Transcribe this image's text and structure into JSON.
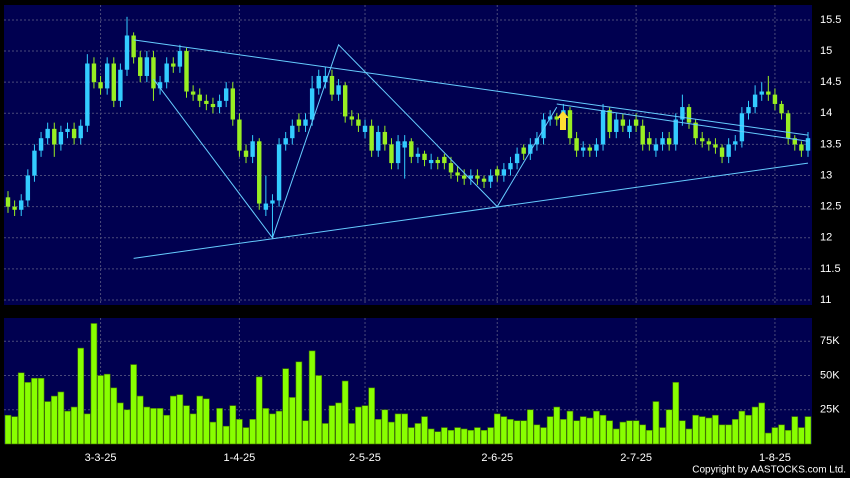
{
  "chart_data": [
    {
      "type": "candlestick",
      "categories": [
        null,
        null,
        null,
        null,
        null,
        null,
        null,
        null,
        null,
        null,
        null,
        null,
        null,
        null,
        "3-3-25",
        null,
        null,
        null,
        null,
        null,
        null,
        null,
        null,
        null,
        null,
        null,
        null,
        null,
        null,
        null,
        null,
        null,
        null,
        null,
        null,
        "1-4-25",
        null,
        null,
        null,
        null,
        null,
        null,
        null,
        null,
        null,
        null,
        null,
        null,
        null,
        null,
        null,
        null,
        null,
        null,
        "2-5-25",
        null,
        null,
        null,
        null,
        null,
        null,
        null,
        null,
        null,
        null,
        null,
        null,
        null,
        null,
        null,
        null,
        null,
        null,
        null,
        "2-6-25",
        null,
        null,
        null,
        null,
        null,
        null,
        null,
        null,
        null,
        null,
        null,
        null,
        null,
        null,
        null,
        null,
        null,
        null,
        null,
        null,
        "2-7-25",
        null,
        null,
        null,
        null,
        null,
        null,
        null,
        null,
        null,
        null,
        null,
        null,
        null,
        null,
        null,
        null,
        null,
        null,
        null,
        null,
        "1-8-25",
        null,
        null,
        null,
        null,
        null
      ],
      "open": [
        12.65,
        12.5,
        12.45,
        12.6,
        13.0,
        13.4,
        13.6,
        13.75,
        13.5,
        13.7,
        13.75,
        13.6,
        13.8,
        14.8,
        14.5,
        14.4,
        14.8,
        14.2,
        14.7,
        15.25,
        14.9,
        14.6,
        14.9,
        14.4,
        14.5,
        14.8,
        14.75,
        15.0,
        14.35,
        14.3,
        14.2,
        14.15,
        14.1,
        14.2,
        14.4,
        13.9,
        13.4,
        13.3,
        13.55,
        12.45,
        12.55,
        12.6,
        13.5,
        13.6,
        13.9,
        13.8,
        13.9,
        14.4,
        14.5,
        14.6,
        14.3,
        14.45,
        13.95,
        13.9,
        13.7,
        13.8,
        13.4,
        13.7,
        13.5,
        13.2,
        13.45,
        13.55,
        13.3,
        13.35,
        13.2,
        13.25,
        13.3,
        13.2,
        13.05,
        13.0,
        12.95,
        13.0,
        12.95,
        12.9,
        13.1,
        13.0,
        13.1,
        13.2,
        13.45,
        13.35,
        13.5,
        13.6,
        13.9,
        13.95,
        13.9,
        14.05,
        13.6,
        13.4,
        13.45,
        13.4,
        13.5,
        14.05,
        13.7,
        13.9,
        13.7,
        13.9,
        13.8,
        13.6,
        13.4,
        13.5,
        13.6,
        13.5,
        13.9,
        14.1,
        13.85,
        13.6,
        13.55,
        13.5,
        13.45,
        13.3,
        13.5,
        13.55,
        14.0,
        14.1,
        14.3,
        14.35,
        14.3,
        14.15,
        14.0,
        13.6,
        13.5,
        13.4
      ],
      "high": [
        12.75,
        12.6,
        12.7,
        13.1,
        13.5,
        13.7,
        13.85,
        13.85,
        13.8,
        13.85,
        13.85,
        13.9,
        14.95,
        14.9,
        14.6,
        14.9,
        14.9,
        14.8,
        15.55,
        15.3,
        15.0,
        15.0,
        15.0,
        14.6,
        14.9,
        14.9,
        15.1,
        15.05,
        14.45,
        14.4,
        14.3,
        14.25,
        14.3,
        14.5,
        14.5,
        14.0,
        13.5,
        13.65,
        13.6,
        13.0,
        12.7,
        13.6,
        13.7,
        13.9,
        14.0,
        14.0,
        14.6,
        14.7,
        14.75,
        14.7,
        14.55,
        14.5,
        14.05,
        14.0,
        13.9,
        13.9,
        13.8,
        13.8,
        13.6,
        13.65,
        13.65,
        13.6,
        13.45,
        13.4,
        13.35,
        13.3,
        13.35,
        13.3,
        13.15,
        13.1,
        13.1,
        13.1,
        13.0,
        13.1,
        13.15,
        13.2,
        13.3,
        13.45,
        13.5,
        13.6,
        13.7,
        14.0,
        14.05,
        14.0,
        14.15,
        14.1,
        13.7,
        13.55,
        13.5,
        13.6,
        14.15,
        14.1,
        14.0,
        14.0,
        13.9,
        14.0,
        13.9,
        13.7,
        13.6,
        13.7,
        13.7,
        14.0,
        14.3,
        14.15,
        13.9,
        13.7,
        13.6,
        13.6,
        13.5,
        13.6,
        13.65,
        14.1,
        14.2,
        14.45,
        14.5,
        14.6,
        14.4,
        14.2,
        14.05,
        13.65,
        13.55,
        13.7
      ],
      "low": [
        12.4,
        12.35,
        12.35,
        12.5,
        12.9,
        13.3,
        13.5,
        13.3,
        13.4,
        13.6,
        13.5,
        13.5,
        13.7,
        14.4,
        14.3,
        14.3,
        14.1,
        14.1,
        14.6,
        14.8,
        14.5,
        14.5,
        14.2,
        14.3,
        14.4,
        14.65,
        14.65,
        14.25,
        14.2,
        14.1,
        14.05,
        14.0,
        14.0,
        14.1,
        13.8,
        13.3,
        13.2,
        13.2,
        12.45,
        12.35,
        12.0,
        12.5,
        13.4,
        13.5,
        13.7,
        13.7,
        13.8,
        14.3,
        14.4,
        14.2,
        14.2,
        13.85,
        13.8,
        13.7,
        13.6,
        13.3,
        13.3,
        13.4,
        13.1,
        13.1,
        12.95,
        13.2,
        13.2,
        13.15,
        13.1,
        13.1,
        13.1,
        12.95,
        12.9,
        12.85,
        12.85,
        12.85,
        12.8,
        12.8,
        12.9,
        12.9,
        13.0,
        13.1,
        13.25,
        13.25,
        13.4,
        13.5,
        13.8,
        13.8,
        13.8,
        13.5,
        13.3,
        13.3,
        13.3,
        13.3,
        13.4,
        13.6,
        13.6,
        13.7,
        13.6,
        13.7,
        13.4,
        13.4,
        13.3,
        13.4,
        13.4,
        13.4,
        13.8,
        13.75,
        13.5,
        13.45,
        13.4,
        13.35,
        13.2,
        13.2,
        13.4,
        13.45,
        13.9,
        14.0,
        14.2,
        14.2,
        14.05,
        13.9,
        13.5,
        13.4,
        13.3,
        13.3
      ],
      "close": [
        12.5,
        12.45,
        12.6,
        13.0,
        13.4,
        13.6,
        13.75,
        13.5,
        13.7,
        13.75,
        13.6,
        13.8,
        14.8,
        14.5,
        14.4,
        14.8,
        14.2,
        14.7,
        15.25,
        14.9,
        14.6,
        14.9,
        14.4,
        14.5,
        14.8,
        14.75,
        15.0,
        14.35,
        14.3,
        14.2,
        14.15,
        14.1,
        14.2,
        14.4,
        13.9,
        13.4,
        13.3,
        13.55,
        12.55,
        12.55,
        12.6,
        13.5,
        13.6,
        13.8,
        13.8,
        13.9,
        14.4,
        14.6,
        14.6,
        14.3,
        14.45,
        13.95,
        13.9,
        13.8,
        13.8,
        13.4,
        13.7,
        13.5,
        13.2,
        13.55,
        13.55,
        13.3,
        13.35,
        13.25,
        13.25,
        13.2,
        13.2,
        13.05,
        13.0,
        12.95,
        13.0,
        12.95,
        12.9,
        13.0,
        13.0,
        13.1,
        13.2,
        13.35,
        13.35,
        13.5,
        13.6,
        13.9,
        13.95,
        13.9,
        14.05,
        13.6,
        13.4,
        13.45,
        13.4,
        13.5,
        14.05,
        13.7,
        13.9,
        13.8,
        13.8,
        13.8,
        13.5,
        13.5,
        13.5,
        13.6,
        13.5,
        13.9,
        14.1,
        13.85,
        13.6,
        13.55,
        13.5,
        13.45,
        13.3,
        13.5,
        13.55,
        14.0,
        14.1,
        14.3,
        14.35,
        14.3,
        14.15,
        14.0,
        13.6,
        13.5,
        13.4,
        13.6
      ],
      "up_color": "#33ccff",
      "down_color": "#99ee22",
      "line_color": "#66ccff",
      "trend_lines": [
        {
          "x": [
            19,
            121
          ],
          "y": [
            15.18,
            13.65
          ]
        },
        {
          "x": [
            19,
            121
          ],
          "y": [
            11.67,
            13.2
          ]
        },
        {
          "x": [
            22,
            40,
            50,
            74,
            83
          ],
          "y": [
            14.55,
            12.0,
            15.1,
            12.5,
            14.1
          ]
        },
        {
          "x": [
            83,
            121
          ],
          "y": [
            14.15,
            13.55
          ]
        }
      ],
      "ylim": [
        10.92,
        15.74
      ],
      "yticks": [
        11,
        11.5,
        12,
        12.5,
        13,
        13.5,
        14,
        14.5,
        15,
        15.5
      ],
      "grid": true
    },
    {
      "type": "bar",
      "values": [
        21000,
        20000,
        52000,
        45000,
        48000,
        48000,
        31000,
        35000,
        38000,
        24000,
        27000,
        70000,
        22000,
        88000,
        50000,
        51000,
        41000,
        30000,
        25000,
        58000,
        35000,
        27000,
        26000,
        26000,
        21000,
        35000,
        36000,
        28000,
        22000,
        35000,
        33000,
        16000,
        26000,
        13000,
        28000,
        18000,
        12000,
        18000,
        49000,
        26000,
        22000,
        24000,
        55000,
        34000,
        60000,
        17000,
        68000,
        50000,
        15000,
        28000,
        30000,
        46000,
        15000,
        27000,
        28000,
        41000,
        18000,
        25000,
        16000,
        22000,
        22000,
        12000,
        15000,
        20000,
        11000,
        9000,
        12000,
        10000,
        12000,
        11000,
        10000,
        12000,
        10000,
        12000,
        22000,
        20000,
        18000,
        17000,
        17000,
        25000,
        14000,
        12000,
        20000,
        27000,
        18000,
        24000,
        17000,
        20000,
        19000,
        24000,
        21000,
        17000,
        11000,
        16000,
        17000,
        17000,
        14000,
        10000,
        31000,
        12000,
        25000,
        45000,
        17000,
        11000,
        21000,
        20000,
        19000,
        21000,
        14000,
        14000,
        18000,
        24000,
        21000,
        27000,
        30000,
        8000,
        12000,
        14000,
        10000,
        20000,
        12000,
        20000
      ],
      "color": "#88ff00",
      "ylim": [
        0,
        92000
      ],
      "yticks": [
        {
          "value": 25000,
          "label": "25K"
        },
        {
          "value": 50000,
          "label": "50K"
        },
        {
          "value": 75000,
          "label": "75K"
        }
      ],
      "grid": true
    }
  ],
  "copyright": "Copyright by AASTOCKS.com Ltd."
}
